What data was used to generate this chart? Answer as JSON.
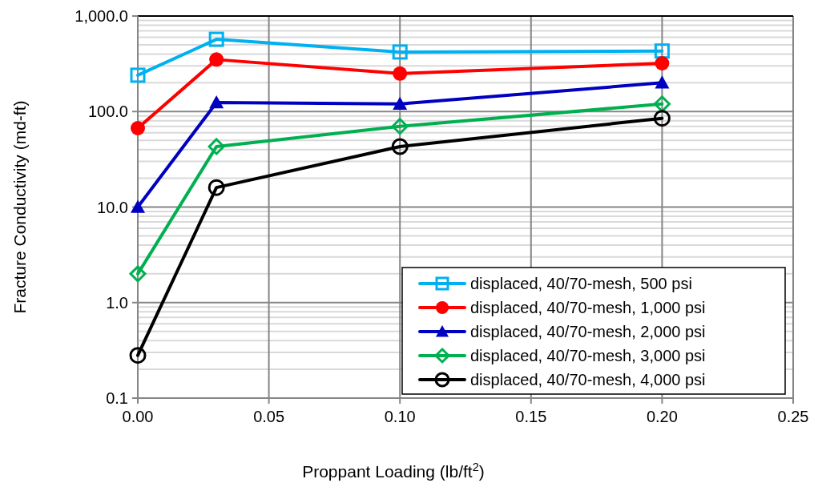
{
  "chart_data": {
    "type": "line",
    "xlabel": "Proppant Loading (lb/ft$^{2}$)",
    "ylabel": "Fracture Conductivity (md-ft)",
    "log": "y",
    "grid": true,
    "legend": "bottom right",
    "line_style": "solid",
    "xlim": [
      0,
      0.25
    ],
    "xticks": [
      {
        "value": 0,
        "label": "0.00"
      },
      {
        "value": 0.05,
        "label": "0.05"
      },
      {
        "value": 0.1,
        "label": "0.10"
      },
      {
        "value": 0.15,
        "label": "0.15"
      },
      {
        "value": 0.2,
        "label": "0.20"
      },
      {
        "value": 0.25,
        "label": "0.25"
      }
    ],
    "ylim": [
      0.1,
      1000
    ],
    "yticks": [
      {
        "value": 0.1,
        "label": "0.1"
      },
      {
        "value": 1,
        "label": "1.0"
      },
      {
        "value": 10,
        "label": "10.0"
      },
      {
        "value": 100,
        "label": "100.0"
      },
      {
        "value": 1000,
        "label": "1,000.0"
      }
    ],
    "x": [
      0,
      0.03,
      0.1,
      0.2
    ],
    "series": [
      {
        "name": "displaced, 40/70-mesh, 500 psi",
        "color": "#00b0f0",
        "marker": "square",
        "values": [
          240,
          570,
          420,
          430
        ]
      },
      {
        "name": "displaced, 40/70-mesh, 1,000 psi",
        "color": "#ff0000",
        "marker": "circle",
        "values": [
          67,
          350,
          250,
          320
        ]
      },
      {
        "name": "displaced, 40/70-mesh, 2,000 psi",
        "color": "#0000c0",
        "marker": "triangle",
        "values": [
          10,
          124,
          120,
          200
        ]
      },
      {
        "name": "displaced, 40/70-mesh, 3,000 psi",
        "color": "#00b050",
        "marker": "diamond",
        "values": [
          2.0,
          43,
          70,
          120
        ]
      },
      {
        "name": "displaced, 40/70-mesh, 4,000 psi",
        "color": "#000000",
        "marker": "circle",
        "values": [
          0.28,
          16,
          43,
          85
        ]
      }
    ]
  }
}
